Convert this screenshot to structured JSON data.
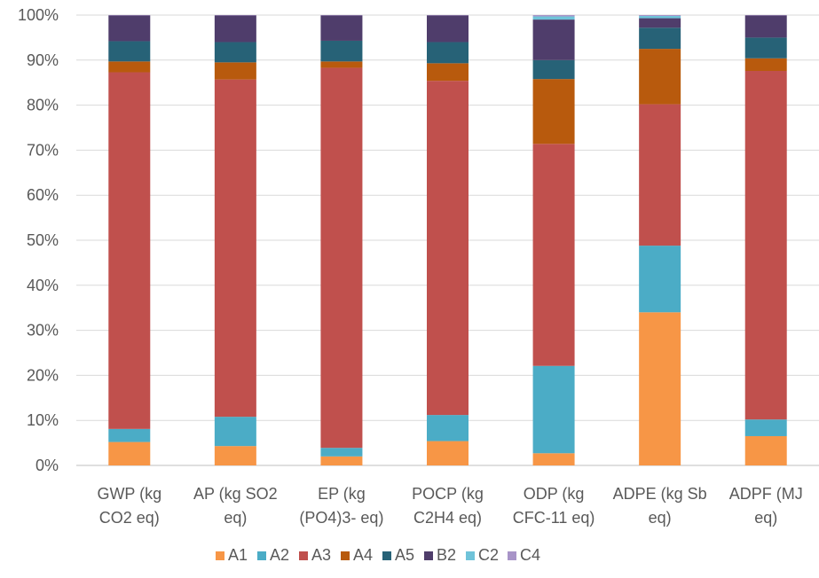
{
  "chart_data": {
    "type": "bar",
    "stacked": true,
    "percent": true,
    "ylim": [
      0,
      100
    ],
    "yticks": [
      "0%",
      "10%",
      "20%",
      "30%",
      "40%",
      "50%",
      "60%",
      "70%",
      "80%",
      "90%",
      "100%"
    ],
    "grid": true,
    "legend_position": "bottom",
    "categories": [
      [
        "GWP (kg",
        "CO2 eq)"
      ],
      [
        "AP (kg SO2",
        "eq)"
      ],
      [
        "EP (kg",
        "(PO4)3- eq)"
      ],
      [
        "POCP (kg",
        "C2H4 eq)"
      ],
      [
        "ODP (kg",
        "CFC-11 eq)"
      ],
      [
        "ADPE (kg Sb",
        "eq)"
      ],
      [
        "ADPF (MJ",
        "eq)"
      ]
    ],
    "series": [
      {
        "name": "A1",
        "color": "#F79646",
        "values": [
          5.2,
          4.3,
          2.0,
          5.4,
          2.7,
          34.0,
          6.5
        ]
      },
      {
        "name": "A2",
        "color": "#4BACC6",
        "values": [
          2.9,
          6.5,
          1.9,
          5.8,
          19.4,
          14.8,
          3.7
        ]
      },
      {
        "name": "A3",
        "color": "#C0504D",
        "values": [
          79.2,
          74.9,
          84.4,
          74.2,
          49.3,
          31.4,
          77.4
        ]
      },
      {
        "name": "A4",
        "color": "#B85A0D",
        "values": [
          2.4,
          3.8,
          1.4,
          3.9,
          14.4,
          12.3,
          2.8
        ]
      },
      {
        "name": "A5",
        "color": "#276277",
        "values": [
          4.5,
          4.5,
          4.6,
          4.7,
          4.2,
          4.7,
          4.6
        ]
      },
      {
        "name": "B2",
        "color": "#4F3D6B",
        "values": [
          5.7,
          5.9,
          5.6,
          5.9,
          9.0,
          2.1,
          4.9
        ]
      },
      {
        "name": "C2",
        "color": "#6FC3D9",
        "values": [
          0.0,
          0.0,
          0.0,
          0.0,
          0.7,
          0.5,
          0.0
        ]
      },
      {
        "name": "C4",
        "color": "#A894C8",
        "values": [
          0.1,
          0.1,
          0.1,
          0.1,
          0.3,
          0.2,
          0.1
        ]
      }
    ]
  }
}
